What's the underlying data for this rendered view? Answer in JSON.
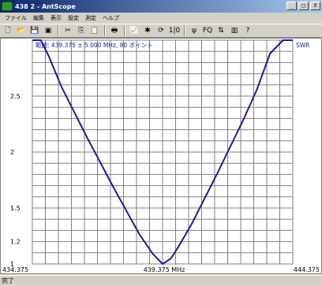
{
  "window": {
    "title": "438 2 - AntScope",
    "min_label": "_",
    "max_label": "□",
    "close_label": "X"
  },
  "menu": {
    "items": [
      "ファイル",
      "編集",
      "表示",
      "設定",
      "測定",
      "ヘルプ"
    ]
  },
  "toolbar": {
    "items": [
      {
        "name": "new-icon",
        "glyph": "🗋"
      },
      {
        "name": "open-icon",
        "glyph": "📂"
      },
      {
        "name": "save-icon",
        "glyph": "💾"
      },
      {
        "name": "export-icon",
        "glyph": "▣"
      },
      {
        "name": "cut-icon",
        "glyph": "✂"
      },
      {
        "name": "copy-icon",
        "glyph": "⎘"
      },
      {
        "name": "paste-icon",
        "glyph": "📋"
      },
      {
        "name": "print-icon",
        "glyph": "🖶"
      },
      {
        "name": "chart-icon",
        "glyph": "📈"
      },
      {
        "name": "settings-icon",
        "glyph": "✱"
      },
      {
        "name": "refresh-icon",
        "glyph": "⟳"
      },
      {
        "name": "counter-icon",
        "glyph": "1|0"
      },
      {
        "name": "antenna-icon",
        "glyph": "ψ"
      },
      {
        "name": "fq-icon",
        "glyph": "FQ"
      },
      {
        "name": "scale-icon",
        "glyph": "⇅"
      },
      {
        "name": "bars-icon",
        "glyph": "▥"
      },
      {
        "name": "help-icon",
        "glyph": "?"
      }
    ]
  },
  "chart_data": {
    "type": "line",
    "annotation": "範囲: 439.375 ± 5.000 MHz, 80 ポイント",
    "series_label": "SWR",
    "x_tick_labels": [
      "434.375",
      "439.375 MHz",
      "444.375"
    ],
    "xlim": [
      434.375,
      444.375
    ],
    "ylim": [
      1,
      3
    ],
    "y_ticks": [
      1,
      1.2,
      1.5,
      2,
      2.5
    ],
    "y_tick_labels": [
      "1",
      "1.2",
      "1.5",
      "2",
      "2.5"
    ],
    "grid": true,
    "line_color": "#1a1aa0",
    "x": [
      434.375,
      434.7,
      435.0,
      435.5,
      436.0,
      436.5,
      437.0,
      437.5,
      438.0,
      438.5,
      439.0,
      439.375,
      439.7,
      440.0,
      440.5,
      441.0,
      441.5,
      442.0,
      442.5,
      443.0,
      443.5,
      444.0,
      444.375
    ],
    "y": [
      3.0,
      3.0,
      2.86,
      2.58,
      2.35,
      2.12,
      1.9,
      1.68,
      1.47,
      1.26,
      1.09,
      1.0,
      1.05,
      1.16,
      1.36,
      1.59,
      1.82,
      2.06,
      2.3,
      2.56,
      2.88,
      3.0,
      3.0
    ]
  },
  "status": {
    "text": "完了"
  }
}
